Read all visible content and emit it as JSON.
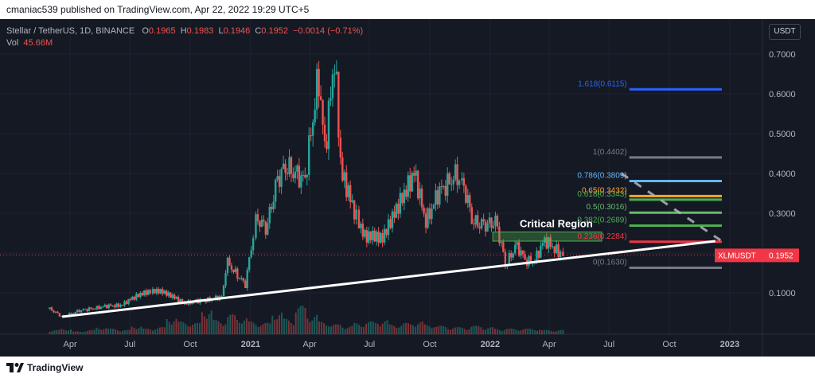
{
  "publisher_line": "cmaniac539 published on TradingView.com, Apr 22, 2022 19:29 UTC+5",
  "legend": {
    "symbol": "Stellar / TetherUS, 1D, BINANCE",
    "o_label": "O",
    "o_value": "0.1965",
    "h_label": "H",
    "h_value": "0.1983",
    "l_label": "L",
    "l_value": "0.1946",
    "c_label": "C",
    "c_value": "0.1952",
    "change": "−0.0014 (−0.71%)",
    "vol_label": "Vol",
    "vol_value": "45.66M"
  },
  "currency_button": "USDT",
  "price_tag": {
    "symbol": "XLMUSDT",
    "value": "0.1952",
    "color": "#f23645"
  },
  "critical_region_label": "Critical Region",
  "colors": {
    "up": "#26a69a",
    "down": "#ef5350",
    "background": "#151924",
    "axis_text": "#b2b5be"
  },
  "footer_brand": "TradingView",
  "chart_data": {
    "type": "candlestick",
    "y_axis": {
      "min": 0.0,
      "max": 0.75,
      "ticks": [
        "0.1000",
        "0.2000",
        "0.3000",
        "0.4000",
        "0.5000",
        "0.6000",
        "0.7000"
      ],
      "tick_values": [
        0.1,
        0.2,
        0.3,
        0.4,
        0.5,
        0.6,
        0.7
      ]
    },
    "x_axis": {
      "ticks": [
        "Apr",
        "Jul",
        "Oct",
        "2021",
        "Apr",
        "Jul",
        "Oct",
        "2022",
        "Apr",
        "Jul",
        "Oct",
        "2023"
      ],
      "bold_ticks": [
        "2021",
        "2022",
        "2023"
      ]
    },
    "price_points": [
      [
        "2020-03-01",
        0.06
      ],
      [
        "2020-03-20",
        0.04
      ],
      [
        "2020-04-15",
        0.055
      ],
      [
        "2020-05-20",
        0.065
      ],
      [
        "2020-06-20",
        0.07
      ],
      [
        "2020-07-20",
        0.1
      ],
      [
        "2020-08-20",
        0.105
      ],
      [
        "2020-09-20",
        0.075
      ],
      [
        "2020-10-20",
        0.08
      ],
      [
        "2020-11-20",
        0.09
      ],
      [
        "2020-11-26",
        0.18
      ],
      [
        "2020-12-10",
        0.15
      ],
      [
        "2020-12-25",
        0.12
      ],
      [
        "2021-01-10",
        0.29
      ],
      [
        "2021-01-25",
        0.26
      ],
      [
        "2021-02-10",
        0.38
      ],
      [
        "2021-02-25",
        0.42
      ],
      [
        "2021-03-10",
        0.4
      ],
      [
        "2021-03-25",
        0.38
      ],
      [
        "2021-04-15",
        0.65
      ],
      [
        "2021-04-25",
        0.45
      ],
      [
        "2021-05-10",
        0.7
      ],
      [
        "2021-05-20",
        0.4
      ],
      [
        "2021-06-10",
        0.3
      ],
      [
        "2021-06-25",
        0.24
      ],
      [
        "2021-07-20",
        0.24
      ],
      [
        "2021-08-10",
        0.3
      ],
      [
        "2021-08-25",
        0.36
      ],
      [
        "2021-09-08",
        0.4
      ],
      [
        "2021-09-25",
        0.28
      ],
      [
        "2021-10-15",
        0.35
      ],
      [
        "2021-11-01",
        0.38
      ],
      [
        "2021-11-12",
        0.4
      ],
      [
        "2021-11-25",
        0.35
      ],
      [
        "2021-12-05",
        0.28
      ],
      [
        "2021-12-25",
        0.27
      ],
      [
        "2022-01-10",
        0.28
      ],
      [
        "2022-01-25",
        0.17
      ],
      [
        "2022-02-10",
        0.22
      ],
      [
        "2022-02-25",
        0.18
      ],
      [
        "2022-03-10",
        0.18
      ],
      [
        "2022-03-25",
        0.23
      ],
      [
        "2022-04-05",
        0.22
      ],
      [
        "2022-04-22",
        0.1952
      ]
    ],
    "volume": [
      3,
      4,
      2,
      3,
      5,
      4,
      3,
      6,
      4,
      5,
      12,
      9,
      8,
      18,
      10,
      14,
      12,
      9,
      8,
      16,
      11,
      20,
      14,
      9,
      7,
      6,
      8,
      9,
      10,
      7,
      8,
      9,
      7,
      6,
      5,
      5,
      6,
      5,
      4,
      4,
      4,
      4,
      3,
      3
    ],
    "trendline": {
      "from": [
        "2020-03-20",
        0.04
      ],
      "to": [
        "2022-12-10",
        0.23
      ]
    },
    "fib_levels": [
      {
        "label": "1.618(0.6115)",
        "value": 0.6115,
        "color": "#2962ff"
      },
      {
        "label": "1(0.4402)",
        "value": 0.4402,
        "color": "#787b86"
      },
      {
        "label": "0.786(0.3809)",
        "value": 0.3809,
        "color": "#64b5f6"
      },
      {
        "label": "0.65(0.3432)",
        "value": 0.3432,
        "color": "#ffa726"
      },
      {
        "label": "0.618(0.3343)",
        "value": 0.3343,
        "color": "#4caf50"
      },
      {
        "label": "0.5(0.3016)",
        "value": 0.3016,
        "color": "#66bb6a"
      },
      {
        "label": "0.382(0.2689)",
        "value": 0.2689,
        "color": "#4caf50"
      },
      {
        "label": "0.236(0.2284)",
        "value": 0.2284,
        "color": "#f23645"
      },
      {
        "label": "0(0.1630)",
        "value": 0.163,
        "color": "#787b86"
      }
    ],
    "critical_region": {
      "low": 0.23,
      "high": 0.253
    },
    "projection_dashes": {
      "from": [
        "2022-07-20",
        0.4
      ],
      "to": [
        "2022-12-20",
        0.23
      ]
    },
    "last_price": 0.1952
  }
}
